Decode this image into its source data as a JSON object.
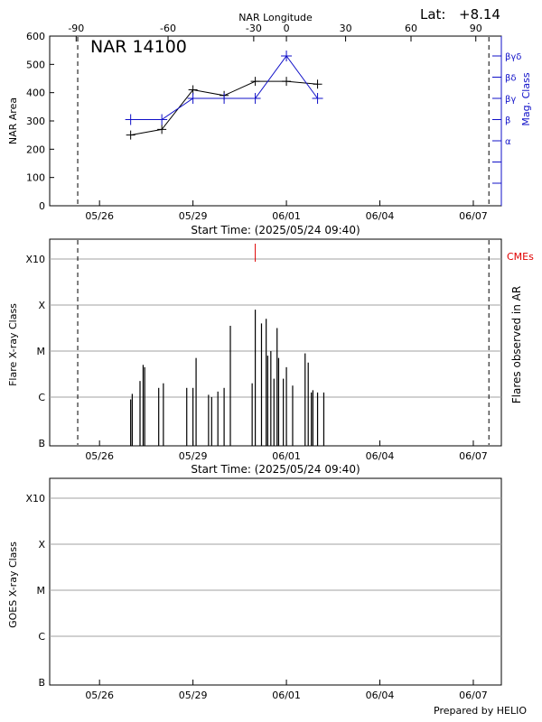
{
  "header": {
    "lat_label": "Lat:",
    "lat_value": "+8.14",
    "footer": "Prepared by HELIO"
  },
  "colors": {
    "area_line": "#000000",
    "magclass_line": "#1010c8",
    "cme": "#e00000",
    "grid": "#a0a0a0",
    "frame": "#000000"
  },
  "chart_data": [
    {
      "type": "line",
      "title": "NAR 14100",
      "xlabel": "Start Time: (2025/05/24 09:40)",
      "top_axis_label": "NAR Longitude",
      "ylabel": "NAR Area",
      "y2label": "Mag. Class",
      "x_start_day": 24.4,
      "x_end_day": 38.9,
      "date_ticks": [
        "05/26",
        "05/29",
        "06/01",
        "06/04",
        "06/07"
      ],
      "date_tick_days": [
        26,
        29,
        32,
        35,
        38
      ],
      "lon_ticks": [
        -90,
        -60,
        -30,
        0,
        30,
        60,
        90
      ],
      "lon_tick_days": [
        25.25,
        28.2,
        30.95,
        32.0,
        33.9,
        36.0,
        38.08
      ],
      "ylim": [
        0,
        600
      ],
      "y_ticks": [
        0,
        100,
        200,
        300,
        400,
        500,
        600
      ],
      "dashed_lines_days": [
        25.3,
        38.5
      ],
      "series": [
        {
          "x_days": [
            27.0,
            28.0,
            29.0,
            30.0,
            31.0,
            32.0,
            33.0
          ],
          "values": [
            250,
            270,
            410,
            390,
            440,
            440,
            430
          ]
        },
        {
          "x_days": [
            27.0,
            28.0,
            29.0,
            30.0,
            31.0,
            32.0,
            33.0
          ],
          "mag_class_levels": [
            1,
            1,
            2,
            2,
            2,
            4,
            2
          ]
        }
      ],
      "mag_class_labels": [
        "α",
        "β",
        "βγ",
        "βδ",
        "βγδ"
      ]
    },
    {
      "type": "bar",
      "xlabel": "Start Time: (2025/05/24 09:40)",
      "ylabel": "Flare X-ray Class",
      "y2label": "Flares observed in AR",
      "cme_label": "CMEs",
      "class_ticks": [
        "B",
        "C",
        "M",
        "X",
        "X10"
      ],
      "date_ticks": [
        "05/26",
        "05/29",
        "06/01",
        "06/04",
        "06/07"
      ],
      "date_tick_days": [
        26,
        29,
        32,
        35,
        38
      ],
      "dashed_lines_days": [
        25.3,
        38.5
      ],
      "cme_days": [
        31.0
      ],
      "flares": [
        {
          "day": 27.0,
          "level": 0.95
        },
        {
          "day": 27.05,
          "level": 1.07
        },
        {
          "day": 27.3,
          "level": 1.35
        },
        {
          "day": 27.4,
          "level": 1.7
        },
        {
          "day": 27.45,
          "level": 1.65
        },
        {
          "day": 27.9,
          "level": 1.2
        },
        {
          "day": 28.05,
          "level": 1.3
        },
        {
          "day": 28.8,
          "level": 1.2
        },
        {
          "day": 29.0,
          "level": 1.2
        },
        {
          "day": 29.1,
          "level": 1.85
        },
        {
          "day": 29.5,
          "level": 1.05
        },
        {
          "day": 29.6,
          "level": 1.0
        },
        {
          "day": 29.8,
          "level": 1.12
        },
        {
          "day": 30.0,
          "level": 1.2
        },
        {
          "day": 30.2,
          "level": 2.55
        },
        {
          "day": 30.9,
          "level": 1.3
        },
        {
          "day": 31.0,
          "level": 2.9
        },
        {
          "day": 31.2,
          "level": 2.6
        },
        {
          "day": 31.35,
          "level": 2.7
        },
        {
          "day": 31.4,
          "level": 1.9
        },
        {
          "day": 31.5,
          "level": 2.0
        },
        {
          "day": 31.6,
          "level": 1.4
        },
        {
          "day": 31.7,
          "level": 2.5
        },
        {
          "day": 31.75,
          "level": 1.85
        },
        {
          "day": 31.9,
          "level": 1.4
        },
        {
          "day": 32.0,
          "level": 1.65
        },
        {
          "day": 32.2,
          "level": 1.25
        },
        {
          "day": 32.6,
          "level": 1.95
        },
        {
          "day": 32.7,
          "level": 1.75
        },
        {
          "day": 32.8,
          "level": 1.1
        },
        {
          "day": 32.85,
          "level": 1.15
        },
        {
          "day": 33.0,
          "level": 1.1
        },
        {
          "day": 33.2,
          "level": 1.1
        }
      ]
    },
    {
      "type": "bar",
      "ylabel": "GOES X-ray Class",
      "class_ticks": [
        "B",
        "C",
        "M",
        "X",
        "X10"
      ],
      "date_ticks": [
        "05/26",
        "05/29",
        "06/01",
        "06/04",
        "06/07"
      ],
      "date_tick_days": [
        26,
        29,
        32,
        35,
        38
      ],
      "flares": []
    }
  ]
}
